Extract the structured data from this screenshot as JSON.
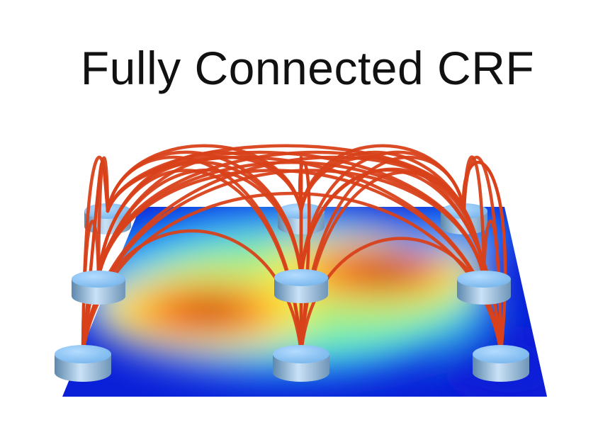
{
  "title": "Fully Connected CRF",
  "diagram": {
    "node_grid": {
      "rows": 3,
      "cols": 3
    },
    "edge_color": "#d8411a",
    "node_color_top": "#8cc3f2",
    "node_color_side": "#7fa8cc",
    "heatmap_colormap": [
      "#0a1fd8",
      "#1aa0ff",
      "#36e6e6",
      "#8ef08a",
      "#fff23a",
      "#ff9a1a",
      "#e81a0a",
      "#8a0000"
    ]
  }
}
